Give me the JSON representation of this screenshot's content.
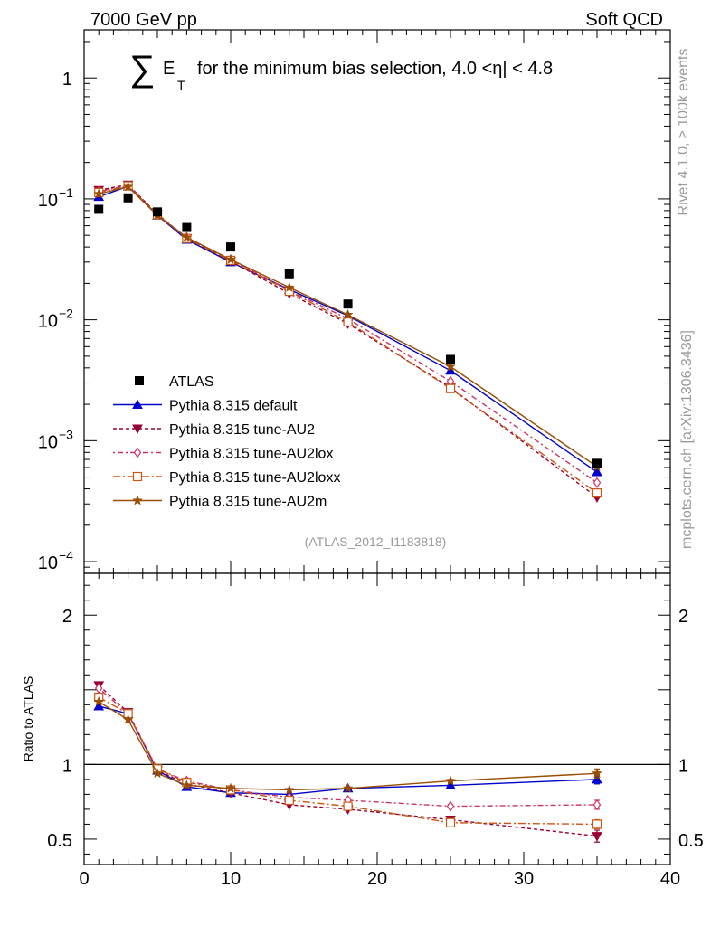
{
  "header": {
    "left": "7000 GeV pp",
    "right": "Soft QCD"
  },
  "side": {
    "rivet": "Rivet 4.1.0, ≥ 100k events",
    "mcplots": "mcplots.cern.ch [arXiv:1306.3436]"
  },
  "chart_data": {
    "type": "line",
    "title_sum": "∑",
    "title_e": "E",
    "title_sub": "T",
    "title_rest": "for the minimum bias selection, 4.0 <η| < 4.8",
    "analysis_label": "(ATLAS_2012_I1183818)",
    "x": [
      1,
      3,
      5,
      7,
      10,
      14,
      18,
      25,
      35
    ],
    "xlim": [
      0,
      40
    ],
    "xticks": [
      0,
      10,
      20,
      30,
      40
    ],
    "main": {
      "yscale": "log",
      "ylim": [
        8e-05,
        2.5
      ],
      "ytick_labels": [
        {
          "value": 1,
          "mantissa": "1",
          "exp": ""
        },
        {
          "value": 0.1,
          "mantissa": "10",
          "exp": "−1"
        },
        {
          "value": 0.01,
          "mantissa": "10",
          "exp": "−2"
        },
        {
          "value": 0.001,
          "mantissa": "10",
          "exp": "−3"
        },
        {
          "value": 0.0001,
          "mantissa": "10",
          "exp": "−4"
        }
      ]
    },
    "ratio": {
      "ylabel": "Ratio to ATLAS",
      "ylim": [
        0.33,
        2.28
      ],
      "yticks_labeled": [
        0.5,
        1,
        2
      ],
      "ytick_labels": [
        "0.5",
        "1",
        "2"
      ]
    },
    "data": {
      "name": "ATLAS",
      "color": "#000000",
      "values": [
        0.082,
        0.102,
        0.078,
        0.058,
        0.04,
        0.024,
        0.0135,
        0.0047,
        0.00065
      ]
    },
    "series": [
      {
        "name": "Pythia 8.315 default",
        "color": "#0000cc",
        "marker": "triangle-up",
        "dash": "",
        "values": [
          0.104,
          0.127,
          0.073,
          0.046,
          0.03,
          0.0178,
          0.0108,
          0.0038,
          0.00055
        ],
        "ratio": [
          1.39,
          1.34,
          0.96,
          0.85,
          0.81,
          0.8,
          0.84,
          0.86,
          0.9
        ],
        "ratio_err": [
          0,
          0,
          0,
          0,
          0,
          0,
          0,
          0.01,
          0.03
        ]
      },
      {
        "name": "Pythia 8.315 tune-AU2",
        "color": "#990033",
        "marker": "triangle-down",
        "dash": "4,3",
        "values": [
          0.118,
          0.131,
          0.075,
          0.047,
          0.0305,
          0.0165,
          0.0093,
          0.00275,
          0.00034
        ],
        "ratio": [
          1.53,
          1.35,
          0.96,
          0.87,
          0.81,
          0.73,
          0.7,
          0.63,
          0.52
        ],
        "ratio_err": [
          0,
          0,
          0,
          0,
          0,
          0,
          0,
          0.01,
          0.04
        ]
      },
      {
        "name": "Pythia 8.315 tune-AU2lox",
        "color": "#cc3366",
        "marker": "diamond-open",
        "dash": "2,3,6,3",
        "values": [
          0.115,
          0.129,
          0.074,
          0.048,
          0.0315,
          0.0175,
          0.0102,
          0.0031,
          0.00045
        ],
        "ratio": [
          1.51,
          1.34,
          0.97,
          0.89,
          0.83,
          0.78,
          0.76,
          0.72,
          0.73
        ],
        "ratio_err": [
          0,
          0,
          0,
          0,
          0,
          0,
          0,
          0.01,
          0.03
        ]
      },
      {
        "name": "Pythia 8.315 tune-AU2loxx",
        "color": "#cc5511",
        "marker": "square-open",
        "dash": "8,3,2,3",
        "values": [
          0.113,
          0.128,
          0.074,
          0.047,
          0.031,
          0.0172,
          0.0096,
          0.0027,
          0.00037
        ],
        "ratio": [
          1.45,
          1.34,
          0.97,
          0.88,
          0.83,
          0.76,
          0.72,
          0.61,
          0.6
        ],
        "ratio_err": [
          0,
          0,
          0,
          0,
          0,
          0,
          0,
          0.01,
          0.03
        ]
      },
      {
        "name": "Pythia 8.315 tune-AU2m",
        "color": "#994d00",
        "marker": "star",
        "dash": "",
        "values": [
          0.11,
          0.126,
          0.073,
          0.048,
          0.0315,
          0.0185,
          0.011,
          0.0041,
          0.00061
        ],
        "ratio": [
          1.42,
          1.3,
          0.94,
          0.86,
          0.84,
          0.83,
          0.84,
          0.89,
          0.94
        ],
        "ratio_err": [
          0,
          0,
          0,
          0,
          0,
          0,
          0,
          0.01,
          0.03
        ]
      }
    ]
  }
}
